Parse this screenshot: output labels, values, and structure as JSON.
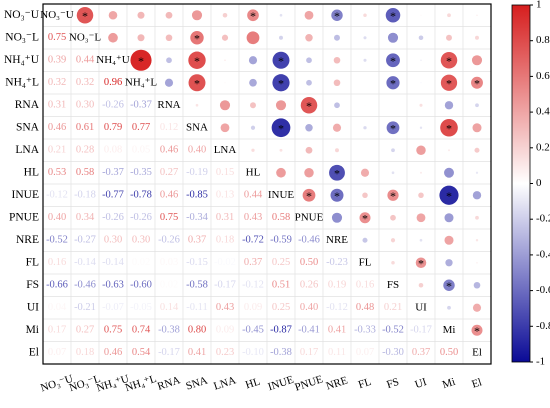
{
  "chart_data": {
    "type": "correlogram",
    "variables": [
      "NO₃⁻U",
      "NO₃⁻L",
      "NH₄⁺U",
      "NH₄⁺L",
      "RNA",
      "SNA",
      "LNA",
      "HL",
      "INUE",
      "PNUE",
      "NRE",
      "FL",
      "FS",
      "UI",
      "Mi",
      "El"
    ],
    "lower_triangle": [
      [
        0.75
      ],
      [
        0.39,
        0.44
      ],
      [
        0.32,
        0.32,
        0.96
      ],
      [
        0.31,
        0.3,
        -0.26,
        -0.37
      ],
      [
        0.46,
        0.61,
        0.79,
        0.77,
        0.12
      ],
      [
        0.21,
        0.28,
        0.08,
        0.05,
        0.46,
        0.4
      ],
      [
        0.53,
        0.58,
        -0.37,
        -0.35,
        0.27,
        -0.19,
        0.15
      ],
      [
        -0.12,
        -0.18,
        -0.77,
        -0.78,
        0.46,
        -0.85,
        0.13,
        0.44
      ],
      [
        0.4,
        0.34,
        -0.26,
        -0.26,
        0.75,
        -0.34,
        0.31,
        0.43,
        0.58
      ],
      [
        -0.52,
        -0.27,
        0.3,
        0.3,
        -0.26,
        0.37,
        0.18,
        -0.72,
        -0.59,
        -0.46
      ],
      [
        0.16,
        -0.14,
        -0.14,
        0.02,
        0.03,
        -0.15,
        -0.02,
        0.37,
        0.25,
        0.5,
        -0.23
      ],
      [
        -0.66,
        -0.46,
        -0.63,
        -0.6,
        0.02,
        -0.58,
        -0.17,
        -0.12,
        0.51,
        0.26,
        0.19,
        0.16
      ],
      [
        0.04,
        -0.21,
        -0.07,
        -0.05,
        0.14,
        -0.11,
        0.43,
        0.09,
        0.25,
        0.4,
        -0.12,
        0.48,
        0.21
      ],
      [
        0.17,
        0.27,
        0.75,
        0.74,
        -0.38,
        0.8,
        0.09,
        -0.45,
        -0.87,
        -0.41,
        0.41,
        -0.33,
        -0.52,
        -0.17
      ],
      [
        0.07,
        0.18,
        0.46,
        0.54,
        -0.17,
        0.41,
        0.23,
        -0.1,
        -0.38,
        0.17,
        0.11,
        0.07,
        -0.3,
        0.37,
        0.5
      ]
    ],
    "value_labels": [
      [
        "0.75"
      ],
      [
        "0.39",
        "0.44"
      ],
      [
        "0.32",
        "0.32",
        "0.96"
      ],
      [
        "0.31",
        "0.30",
        "-0.26",
        "-0.37"
      ],
      [
        "0.46",
        "0.61",
        "0.79",
        "0.77",
        "0.12"
      ],
      [
        "0.21",
        "0.28",
        "0.08",
        "0.05",
        "0.46",
        "0.40"
      ],
      [
        "0.53",
        "0.58",
        "-0.37",
        "-0.35",
        "0.27",
        "-0.19",
        "0.15"
      ],
      [
        "-0.12",
        "-0.18",
        "-0.77",
        "-0.78",
        "0.46",
        "-0.85",
        "0.13",
        "0.44"
      ],
      [
        "0.40",
        "0.34",
        "-0.26",
        "-0.26",
        "0.75",
        "-0.34",
        "0.31",
        "0.43",
        "0.58"
      ],
      [
        "-0.52",
        "-0.27",
        "0.30",
        "0.30",
        "-0.26",
        "0.37",
        "0.18",
        "-0.72",
        "-0.59",
        "-0.46"
      ],
      [
        "0.16",
        "-0.14",
        "-0.14",
        "0.02",
        "0.03",
        "-0.15",
        "-0.02",
        "0.37",
        "0.25",
        "0.50",
        "-0.23"
      ],
      [
        "-0.66",
        "-0.46",
        "-0.63",
        "-0.60",
        "0.02",
        "-0.58",
        "-0.17",
        "-0.12",
        "0.51",
        "0.26",
        "0.19",
        "0.16"
      ],
      [
        "0.04",
        "-0.21",
        "-0.07",
        "-0.05",
        "0.14",
        "-0.11",
        "0.43",
        "0.09",
        "0.25",
        "0.40",
        "-0.12",
        "0.48",
        "0.21"
      ],
      [
        "0.17",
        "0.27",
        "0.75",
        "0.74",
        "-0.38",
        "0.80",
        "0.09",
        "-0.45",
        "-0.87",
        "-0.41",
        "0.41",
        "-0.33",
        "-0.52",
        "-0.17"
      ],
      [
        "0.07",
        "0.18",
        "0.46",
        "0.54",
        "-0.17",
        "0.41",
        "0.23",
        "-0.10",
        "-0.38",
        "0.17",
        "0.11",
        "0.07",
        "-0.30",
        "0.37",
        "0.50"
      ]
    ],
    "star_symbol": "*",
    "significant_pairs": [
      [
        0,
        1
      ],
      [
        0,
        7
      ],
      [
        0,
        10
      ],
      [
        0,
        12
      ],
      [
        1,
        5
      ],
      [
        2,
        3
      ],
      [
        2,
        5
      ],
      [
        2,
        8
      ],
      [
        2,
        12
      ],
      [
        2,
        14
      ],
      [
        3,
        5
      ],
      [
        3,
        8
      ],
      [
        3,
        12
      ],
      [
        3,
        14
      ],
      [
        3,
        15
      ],
      [
        4,
        9
      ],
      [
        5,
        8
      ],
      [
        5,
        12
      ],
      [
        5,
        14
      ],
      [
        7,
        10
      ],
      [
        8,
        9
      ],
      [
        8,
        10
      ],
      [
        8,
        12
      ],
      [
        8,
        14
      ],
      [
        9,
        11
      ],
      [
        11,
        13
      ],
      [
        12,
        14
      ],
      [
        14,
        15
      ]
    ],
    "colorbar": {
      "lim": [
        -1,
        1
      ],
      "ticks": [
        1,
        0.8,
        0.6,
        0.4,
        0.2,
        0,
        -0.2,
        -0.4,
        -0.6,
        -0.8,
        -1
      ]
    },
    "colors": {
      "positive": "#d61e1e",
      "negative": "#0a0a96"
    }
  }
}
